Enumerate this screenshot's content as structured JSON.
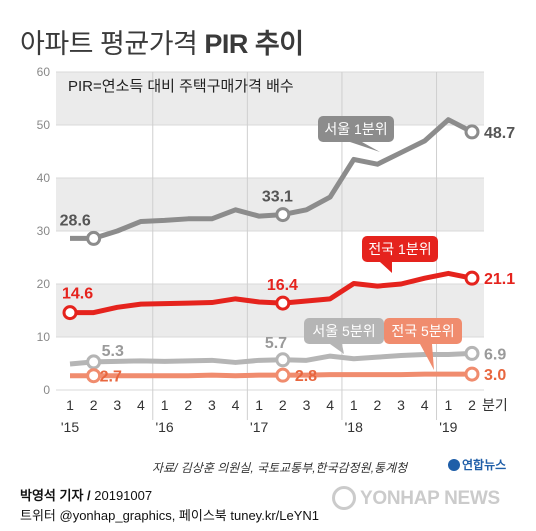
{
  "title": {
    "main": "아파트 평균가격 ",
    "bold": "PIR 추이"
  },
  "chart_data": {
    "type": "line",
    "legend_note": "PIR=연소득 대비 주택구매가격 배수",
    "ylim": [
      0,
      60
    ],
    "yticks": [
      "0",
      "10",
      "20",
      "30",
      "40",
      "50",
      "60"
    ],
    "x_unit": "분기",
    "quarters": [
      "1",
      "2",
      "3",
      "4",
      "1",
      "2",
      "3",
      "4",
      "1",
      "2",
      "3",
      "4",
      "1",
      "2",
      "3",
      "4",
      "1",
      "2"
    ],
    "years": [
      {
        "index": 0,
        "label": "'15"
      },
      {
        "index": 4,
        "label": "'16"
      },
      {
        "index": 8,
        "label": "'17"
      },
      {
        "index": 12,
        "label": "'18"
      },
      {
        "index": 16,
        "label": "'19"
      }
    ],
    "series": [
      {
        "name": "서울 1분위",
        "color": "#8c8c8c",
        "values": [
          28.6,
          28.6,
          30.0,
          31.8,
          32.0,
          32.3,
          32.3,
          34.0,
          32.8,
          33.1,
          34.0,
          36.4,
          43.5,
          42.6,
          44.8,
          47.0,
          51.0,
          48.7
        ],
        "labels": [
          {
            "index": 1,
            "text": "28.6"
          },
          {
            "index": 9,
            "text": "33.1"
          },
          {
            "index": 17,
            "text": "48.7"
          }
        ]
      },
      {
        "name": "전국 1분위",
        "color": "#e5231d",
        "values": [
          14.6,
          14.6,
          15.6,
          16.2,
          16.3,
          16.4,
          16.5,
          17.2,
          16.6,
          16.4,
          16.8,
          17.2,
          20.1,
          19.6,
          20.0,
          21.1,
          22.0,
          21.1
        ],
        "labels": [
          {
            "index": 0,
            "text": "14.6"
          },
          {
            "index": 9,
            "text": "16.4"
          },
          {
            "index": 17,
            "text": "21.1"
          }
        ]
      },
      {
        "name": "서울 5분위",
        "color": "#b5b5b5",
        "values": [
          4.9,
          5.3,
          5.4,
          5.5,
          5.4,
          5.5,
          5.6,
          5.2,
          5.6,
          5.7,
          5.6,
          6.4,
          5.9,
          6.2,
          6.5,
          6.7,
          6.7,
          6.9
        ],
        "labels": [
          {
            "index": 1,
            "text": "5.3"
          },
          {
            "index": 9,
            "text": "5.7"
          },
          {
            "index": 17,
            "text": "6.9"
          }
        ]
      },
      {
        "name": "전국 5분위",
        "color": "#f08c6e",
        "values": [
          2.7,
          2.7,
          2.7,
          2.7,
          2.7,
          2.7,
          2.8,
          2.7,
          2.8,
          2.8,
          2.8,
          2.9,
          2.9,
          2.9,
          2.9,
          3.0,
          3.0,
          3.0
        ],
        "labels": [
          {
            "index": 1,
            "text": "2.7"
          },
          {
            "index": 9,
            "text": "2.8"
          },
          {
            "index": 17,
            "text": "3.0"
          }
        ]
      }
    ]
  },
  "source": "자료/ 김상훈 의원실, 국토교통부,한국감정원,통계청",
  "brand_small": "연합뉴스",
  "footer": {
    "reporter": "박영석 기자 / ",
    "date": "20191007",
    "social": "트위터 @yonhap_graphics, 페이스북 tuney.kr/LeYN1"
  },
  "watermark": "YONHAP NEWS"
}
